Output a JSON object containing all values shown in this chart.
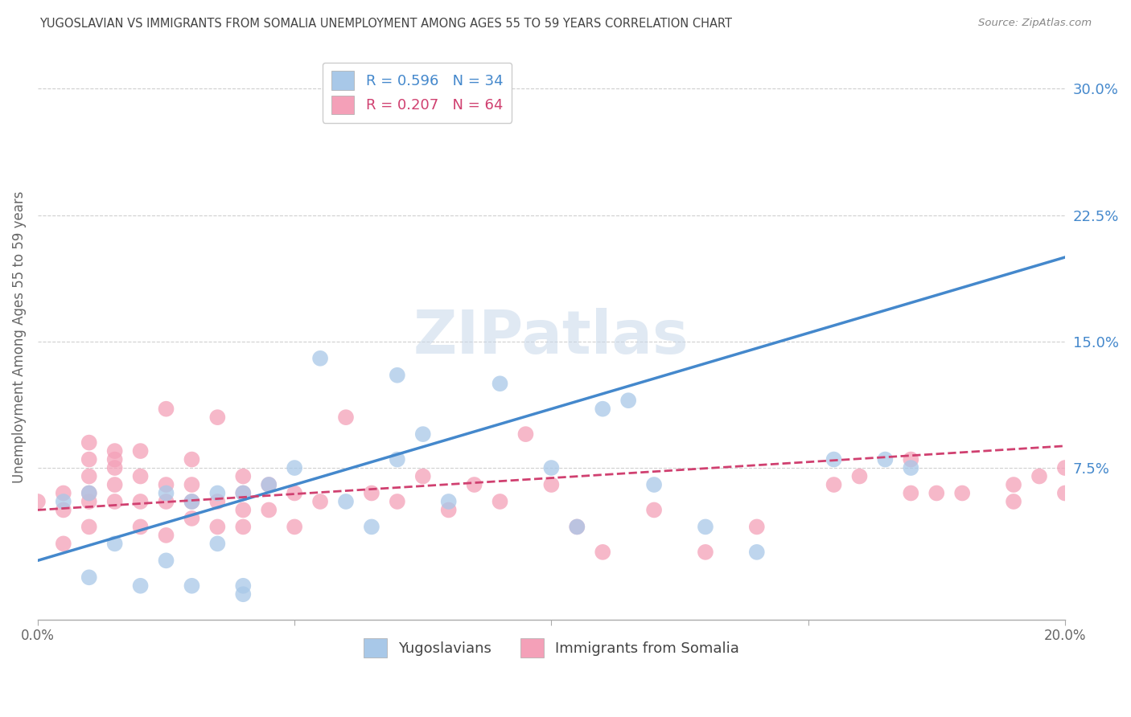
{
  "title": "YUGOSLAVIAN VS IMMIGRANTS FROM SOMALIA UNEMPLOYMENT AMONG AGES 55 TO 59 YEARS CORRELATION CHART",
  "source": "Source: ZipAtlas.com",
  "ylabel": "Unemployment Among Ages 55 to 59 years",
  "xlim": [
    0.0,
    0.2
  ],
  "ylim": [
    -0.015,
    0.32
  ],
  "xticks": [
    0.0,
    0.05,
    0.1,
    0.15,
    0.2
  ],
  "xticklabels": [
    "0.0%",
    "",
    "",
    "",
    "20.0%"
  ],
  "ytick_labels_right": [
    "30.0%",
    "22.5%",
    "15.0%",
    "7.5%"
  ],
  "ytick_vals_right": [
    0.3,
    0.225,
    0.15,
    0.075
  ],
  "blue_R": 0.596,
  "blue_N": 34,
  "pink_R": 0.207,
  "pink_N": 64,
  "blue_color": "#a8c8e8",
  "pink_color": "#f4a0b8",
  "blue_line_color": "#4488cc",
  "pink_line_color": "#d04070",
  "legend_labels": [
    "Yugoslavians",
    "Immigrants from Somalia"
  ],
  "blue_scatter_x": [
    0.005,
    0.01,
    0.01,
    0.015,
    0.02,
    0.025,
    0.025,
    0.03,
    0.03,
    0.035,
    0.035,
    0.04,
    0.04,
    0.04,
    0.045,
    0.05,
    0.055,
    0.06,
    0.065,
    0.07,
    0.07,
    0.075,
    0.08,
    0.09,
    0.1,
    0.105,
    0.11,
    0.115,
    0.12,
    0.13,
    0.14,
    0.155,
    0.165,
    0.17
  ],
  "blue_scatter_y": [
    0.055,
    0.01,
    0.06,
    0.03,
    0.005,
    0.02,
    0.06,
    0.005,
    0.055,
    0.03,
    0.06,
    0.06,
    0.0,
    0.005,
    0.065,
    0.075,
    0.14,
    0.055,
    0.04,
    0.13,
    0.08,
    0.095,
    0.055,
    0.125,
    0.075,
    0.04,
    0.11,
    0.115,
    0.065,
    0.04,
    0.025,
    0.08,
    0.08,
    0.075
  ],
  "pink_scatter_x": [
    0.0,
    0.005,
    0.005,
    0.005,
    0.01,
    0.01,
    0.01,
    0.01,
    0.01,
    0.01,
    0.015,
    0.015,
    0.015,
    0.015,
    0.015,
    0.02,
    0.02,
    0.02,
    0.02,
    0.025,
    0.025,
    0.025,
    0.025,
    0.03,
    0.03,
    0.03,
    0.03,
    0.035,
    0.035,
    0.035,
    0.04,
    0.04,
    0.04,
    0.04,
    0.045,
    0.045,
    0.05,
    0.05,
    0.055,
    0.06,
    0.065,
    0.07,
    0.075,
    0.08,
    0.085,
    0.09,
    0.095,
    0.1,
    0.105,
    0.11,
    0.12,
    0.13,
    0.14,
    0.155,
    0.16,
    0.17,
    0.17,
    0.175,
    0.18,
    0.19,
    0.19,
    0.195,
    0.2,
    0.2
  ],
  "pink_scatter_y": [
    0.055,
    0.03,
    0.05,
    0.06,
    0.04,
    0.055,
    0.06,
    0.07,
    0.08,
    0.09,
    0.055,
    0.065,
    0.075,
    0.08,
    0.085,
    0.04,
    0.055,
    0.07,
    0.085,
    0.035,
    0.055,
    0.065,
    0.11,
    0.045,
    0.055,
    0.065,
    0.08,
    0.04,
    0.055,
    0.105,
    0.04,
    0.05,
    0.06,
    0.07,
    0.05,
    0.065,
    0.04,
    0.06,
    0.055,
    0.105,
    0.06,
    0.055,
    0.07,
    0.05,
    0.065,
    0.055,
    0.095,
    0.065,
    0.04,
    0.025,
    0.05,
    0.025,
    0.04,
    0.065,
    0.07,
    0.06,
    0.08,
    0.06,
    0.06,
    0.055,
    0.065,
    0.07,
    0.06,
    0.075
  ],
  "blue_line_x0": 0.0,
  "blue_line_y0": 0.02,
  "blue_line_x1": 0.2,
  "blue_line_y1": 0.2,
  "pink_line_x0": 0.0,
  "pink_line_y0": 0.05,
  "pink_line_x1": 0.2,
  "pink_line_y1": 0.088,
  "watermark": "ZIPatlas",
  "background_color": "#ffffff",
  "grid_color": "#bbbbbb"
}
